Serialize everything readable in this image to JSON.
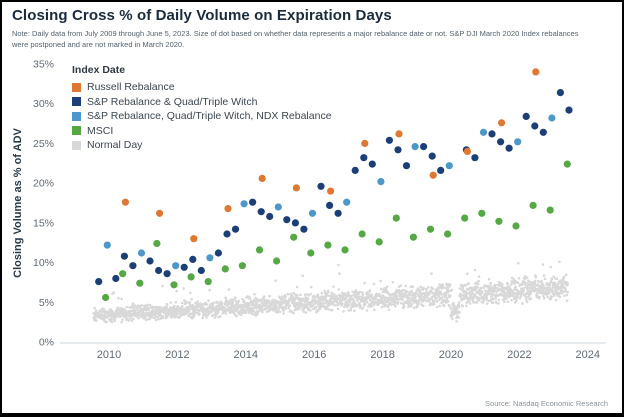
{
  "title": "Closing Cross % of Daily Volume on Expiration Days",
  "note": "Note: Daily data from July 2009 through June 5, 2023. Size of dot based on whether data represents a major rebalance date or not. S&P DJI March 2020 Index rebalances were postponed and are not marked in March 2020.",
  "source": "Source:  Nasdaq Economic Research",
  "legend": {
    "title": "Index Date",
    "items": [
      {
        "label": "Russell Rebalance",
        "color": "#DE7833"
      },
      {
        "label": "S&P Rebalance & Quad/Triple Witch",
        "color": "#1C3F77"
      },
      {
        "label": "S&P Rebalance, Quad/Triple Witch, NDX Rebalance",
        "color": "#4E97C9"
      },
      {
        "label": "MSCI",
        "color": "#55A843"
      },
      {
        "label": "Normal Day",
        "color": "#D8D8D8"
      }
    ]
  },
  "chart_data": {
    "type": "scatter",
    "title": "Closing Cross % of Daily Volume on Expiration Days",
    "xlabel": "",
    "ylabel": "Closing Volume as % of ADV",
    "ylim": [
      0,
      35
    ],
    "xlim": [
      2009,
      2024.5
    ],
    "grid": false,
    "legend_position": "top-left-inside",
    "y_ticks": [
      {
        "value": 0,
        "label": "0%"
      },
      {
        "value": 5,
        "label": "5%"
      },
      {
        "value": 10,
        "label": "10%"
      },
      {
        "value": 15,
        "label": "15%"
      },
      {
        "value": 20,
        "label": "20%"
      },
      {
        "value": 25,
        "label": "25%"
      },
      {
        "value": 30,
        "label": "30%"
      },
      {
        "value": 35,
        "label": "35%"
      }
    ],
    "x_ticks": [
      2010,
      2012,
      2014,
      2016,
      2018,
      2020,
      2022,
      2024
    ],
    "series": [
      {
        "name": "Normal Day",
        "color": "#D8D8D8",
        "dot_radius": 1.3,
        "generator": {
          "seed": 42,
          "count": 2400,
          "x_start": 2009.55,
          "x_end": 2023.42,
          "base_start": 3.3,
          "base_end": 6.9,
          "spread_start": 1.0,
          "spread_end": 1.9,
          "outlier_fraction": 0.05,
          "outlier_max_extra": 4.5,
          "dip_center": 2020.12,
          "dip_half_width": 0.13,
          "dip_factor": 0.55,
          "min_value": 0.4
        }
      },
      {
        "name": "MSCI",
        "color": "#55A843",
        "dot_radius": 3.6,
        "points": [
          [
            2009.9,
            5.6
          ],
          [
            2010.4,
            8.6
          ],
          [
            2010.9,
            7.4
          ],
          [
            2011.4,
            12.4
          ],
          [
            2011.9,
            7.2
          ],
          [
            2012.4,
            8.2
          ],
          [
            2012.9,
            7.6
          ],
          [
            2013.4,
            9.2
          ],
          [
            2013.9,
            9.6
          ],
          [
            2014.4,
            11.6
          ],
          [
            2014.9,
            10.2
          ],
          [
            2015.4,
            13.2
          ],
          [
            2015.9,
            11.2
          ],
          [
            2016.4,
            12.2
          ],
          [
            2016.9,
            11.6
          ],
          [
            2017.4,
            13.6
          ],
          [
            2017.9,
            12.6
          ],
          [
            2018.4,
            15.6
          ],
          [
            2018.9,
            13.2
          ],
          [
            2019.4,
            14.2
          ],
          [
            2019.9,
            13.6
          ],
          [
            2020.4,
            15.6
          ],
          [
            2020.9,
            16.2
          ],
          [
            2021.4,
            15.2
          ],
          [
            2021.9,
            14.6
          ],
          [
            2022.4,
            17.2
          ],
          [
            2022.9,
            16.6
          ],
          [
            2023.4,
            22.4
          ]
        ]
      },
      {
        "name": "S&P Rebalance, Quad/Triple Witch, NDX Rebalance",
        "color": "#4E97C9",
        "dot_radius": 3.6,
        "points": [
          [
            2009.95,
            12.2
          ],
          [
            2010.95,
            11.2
          ],
          [
            2011.95,
            9.6
          ],
          [
            2012.95,
            10.6
          ],
          [
            2013.95,
            17.4
          ],
          [
            2014.95,
            17.0
          ],
          [
            2015.95,
            16.2
          ],
          [
            2016.95,
            17.6
          ],
          [
            2017.95,
            20.2
          ],
          [
            2018.95,
            24.6
          ],
          [
            2019.95,
            22.2
          ],
          [
            2020.95,
            26.4
          ],
          [
            2021.95,
            25.2
          ],
          [
            2022.95,
            28.2
          ]
        ]
      },
      {
        "name": "S&P Rebalance & Quad/Triple Witch",
        "color": "#1C3F77",
        "dot_radius": 3.6,
        "points": [
          [
            2009.7,
            7.6
          ],
          [
            2010.2,
            8.0
          ],
          [
            2010.45,
            10.8
          ],
          [
            2010.7,
            9.6
          ],
          [
            2011.2,
            10.2
          ],
          [
            2011.45,
            9.0
          ],
          [
            2011.7,
            8.6
          ],
          [
            2012.2,
            9.4
          ],
          [
            2012.45,
            10.4
          ],
          [
            2012.7,
            9.0
          ],
          [
            2013.2,
            11.2
          ],
          [
            2013.45,
            13.6
          ],
          [
            2013.7,
            14.2
          ],
          [
            2014.2,
            17.6
          ],
          [
            2014.45,
            16.4
          ],
          [
            2014.7,
            15.8
          ],
          [
            2015.2,
            15.4
          ],
          [
            2015.45,
            15.0
          ],
          [
            2015.7,
            14.2
          ],
          [
            2016.2,
            19.6
          ],
          [
            2016.45,
            17.2
          ],
          [
            2016.7,
            16.2
          ],
          [
            2017.2,
            21.6
          ],
          [
            2017.45,
            23.2
          ],
          [
            2017.7,
            22.4
          ],
          [
            2018.2,
            25.4
          ],
          [
            2018.45,
            24.2
          ],
          [
            2018.7,
            22.2
          ],
          [
            2019.2,
            24.6
          ],
          [
            2019.45,
            23.4
          ],
          [
            2019.7,
            21.6
          ],
          [
            2020.45,
            24.2
          ],
          [
            2020.7,
            23.2
          ],
          [
            2021.2,
            26.2
          ],
          [
            2021.45,
            25.2
          ],
          [
            2021.7,
            24.4
          ],
          [
            2022.2,
            28.4
          ],
          [
            2022.45,
            27.2
          ],
          [
            2022.7,
            26.4
          ],
          [
            2023.2,
            31.4
          ],
          [
            2023.45,
            29.2
          ]
        ]
      },
      {
        "name": "Russell Rebalance",
        "color": "#DE7833",
        "dot_radius": 3.6,
        "points": [
          [
            2010.48,
            17.6
          ],
          [
            2011.48,
            16.2
          ],
          [
            2012.48,
            13.0
          ],
          [
            2013.48,
            16.8
          ],
          [
            2014.48,
            20.6
          ],
          [
            2015.48,
            19.4
          ],
          [
            2016.48,
            19.0
          ],
          [
            2017.48,
            25.0
          ],
          [
            2018.48,
            26.2
          ],
          [
            2019.48,
            21.0
          ],
          [
            2020.48,
            24.0
          ],
          [
            2021.48,
            27.6
          ],
          [
            2022.48,
            34.0
          ]
        ]
      }
    ]
  }
}
